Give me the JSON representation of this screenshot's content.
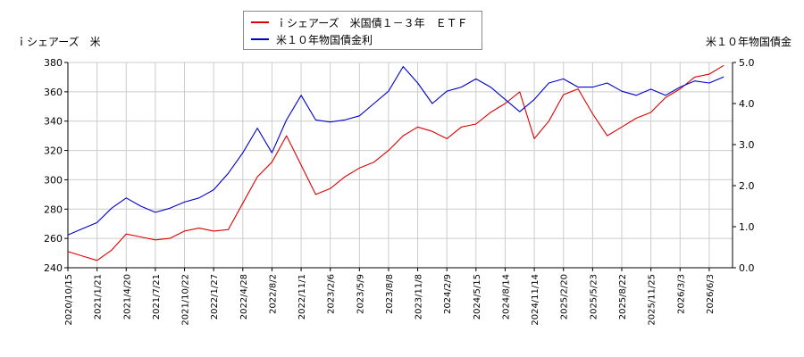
{
  "chart_data": {
    "type": "line",
    "left_axis_label": "ｉシェアーズ　米",
    "right_axis_label": "米１０年物国債金",
    "legend": [
      {
        "name": "ｉシェアーズ　米国債１－３年　ＥＴＦ",
        "color": "#dd0000"
      },
      {
        "name": "米１０年物国債金利",
        "color": "#0000cc"
      }
    ],
    "left_ylim": [
      240,
      380
    ],
    "left_yticks": [
      "240",
      "260",
      "280",
      "300",
      "320",
      "340",
      "360",
      "380"
    ],
    "right_ylim": [
      0.0,
      5.0
    ],
    "right_yticks": [
      "0.0",
      "1.0",
      "2.0",
      "3.0",
      "4.0",
      "5.0"
    ],
    "x_labels": [
      "2020/10/15",
      "2021/1/21",
      "2021/4/20",
      "2021/7/21",
      "2021/10/22",
      "2022/1/27",
      "2022/4/28",
      "2022/8/2",
      "2022/11/1",
      "2023/2/6",
      "2023/5/9",
      "2023/8/8",
      "2023/11/8",
      "2024/2/9",
      "2024/5/15",
      "2024/8/14",
      "2024/11/14",
      "2025/2/20",
      "2025/5/23",
      "2025/8/22",
      "2025/11/25",
      "2026/3/3",
      "2026/6/3"
    ],
    "grid": true,
    "series": [
      {
        "name": "ｉシェアーズ　米国債１－３年　ＥＴＦ",
        "axis": "left",
        "color": "#dd0000",
        "x": [
          0,
          0.5,
          1,
          1.5,
          2,
          2.5,
          3,
          3.5,
          4,
          4.5,
          5,
          5.5,
          6,
          6.5,
          7,
          7.5,
          8,
          8.5,
          9,
          9.5,
          10,
          10.5,
          11,
          11.5,
          12,
          12.5,
          13,
          13.5,
          14,
          14.5,
          15,
          15.5,
          16,
          16.5,
          17,
          17.5,
          18,
          18.5,
          19,
          19.5,
          20,
          20.5,
          21,
          21.5,
          22,
          22.5
        ],
        "values": [
          251,
          248,
          245,
          252,
          263,
          261,
          259,
          260,
          265,
          267,
          265,
          266,
          284,
          302,
          312,
          330,
          310,
          290,
          294,
          302,
          308,
          312,
          320,
          330,
          336,
          333,
          328,
          336,
          338,
          346,
          352,
          360,
          328,
          340,
          358,
          362,
          345,
          330,
          336,
          342,
          346,
          356,
          362,
          370,
          372,
          378
        ]
      },
      {
        "name": "米１０年物国債金利",
        "axis": "right",
        "color": "#0000cc",
        "x": [
          0,
          0.5,
          1,
          1.5,
          2,
          2.5,
          3,
          3.5,
          4,
          4.5,
          5,
          5.5,
          6,
          6.5,
          7,
          7.5,
          8,
          8.5,
          9,
          9.5,
          10,
          10.5,
          11,
          11.5,
          12,
          12.5,
          13,
          13.5,
          14,
          14.5,
          15,
          15.5,
          16,
          16.5,
          17,
          17.5,
          18,
          18.5,
          19,
          19.5,
          20,
          20.5,
          21,
          21.5,
          22,
          22.5
        ],
        "values": [
          0.8,
          0.95,
          1.1,
          1.45,
          1.7,
          1.5,
          1.35,
          1.45,
          1.6,
          1.7,
          1.9,
          2.3,
          2.8,
          3.4,
          2.8,
          3.6,
          4.2,
          3.6,
          3.55,
          3.6,
          3.7,
          4.0,
          4.3,
          4.9,
          4.5,
          4.0,
          4.3,
          4.4,
          4.6,
          4.4,
          4.1,
          3.8,
          4.1,
          4.5,
          4.6,
          4.4,
          4.4,
          4.5,
          4.3,
          4.2,
          4.35,
          4.2,
          4.4,
          4.55,
          4.5,
          4.65
        ]
      }
    ]
  }
}
